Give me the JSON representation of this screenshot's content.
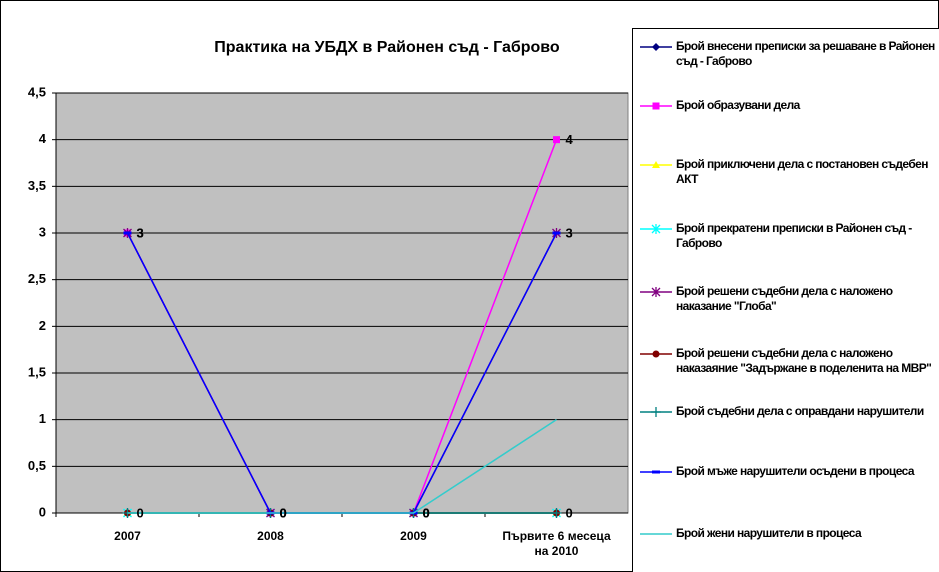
{
  "chart_data": {
    "type": "line",
    "title": "Практика на УБДХ в Районен съд - Габрово",
    "categories": [
      "2007",
      "2008",
      "2009",
      "Първите 6 месеца на 2010"
    ],
    "ylim": [
      0,
      4.5
    ],
    "yticks": [
      0,
      {
        "value": 0.5,
        "label": "0,5"
      },
      1,
      {
        "value": 1.5,
        "label": "1,5"
      },
      2,
      {
        "value": 2.5,
        "label": "2,5"
      },
      3,
      {
        "value": 3.5,
        "label": "3,5"
      },
      4,
      {
        "value": 4.5,
        "label": "4,5"
      }
    ],
    "grid": true,
    "legend": "right",
    "background": "#c0c0c0",
    "series": [
      {
        "name": "Брой внесени преписки за решаване в Районен съд - Габрово",
        "color": "#000080",
        "marker": "diamond",
        "values": [
          0,
          0,
          0,
          0
        ],
        "labels": true
      },
      {
        "name": "Брой образувани дела",
        "color": "#ff00ff",
        "marker": "square",
        "values": [
          3,
          0,
          0,
          4
        ],
        "labels": true
      },
      {
        "name": "Брой приключени дела с постановен съдебен АКТ",
        "color": "#ffff00",
        "marker": "triangle",
        "values": [
          0,
          0,
          0,
          0
        ]
      },
      {
        "name": "Брой прекратени преписки в Районен съд - Габрово",
        "color": "#00ffff",
        "marker": "asterisk",
        "values": [
          0,
          0,
          0,
          0
        ]
      },
      {
        "name": "Брой решени съдебни дела с наложено наказание \"Глоба\"",
        "color": "#800080",
        "marker": "asterisk",
        "values": [
          3,
          0,
          0,
          3
        ],
        "labels": true
      },
      {
        "name": "Брой решени съдебни дела с наложено наказаяние \"Задържане в поделенита на МВР\"",
        "color": "#800000",
        "marker": "circle",
        "values": [
          0,
          0,
          0,
          0
        ]
      },
      {
        "name": "Брой съдебни дела с оправдани нарушители",
        "color": "#008080",
        "marker": "plus",
        "values": [
          0,
          0,
          0,
          0
        ]
      },
      {
        "name": "Брой мъже нарушители осъдени в процеса",
        "color": "#0000ff",
        "marker": "dash",
        "values": [
          3,
          0,
          0,
          3
        ]
      },
      {
        "name": "Брой жени нарушители в процеса",
        "color": "#33cccc",
        "marker": "none",
        "values": [
          0,
          0,
          0,
          1
        ]
      }
    ]
  }
}
